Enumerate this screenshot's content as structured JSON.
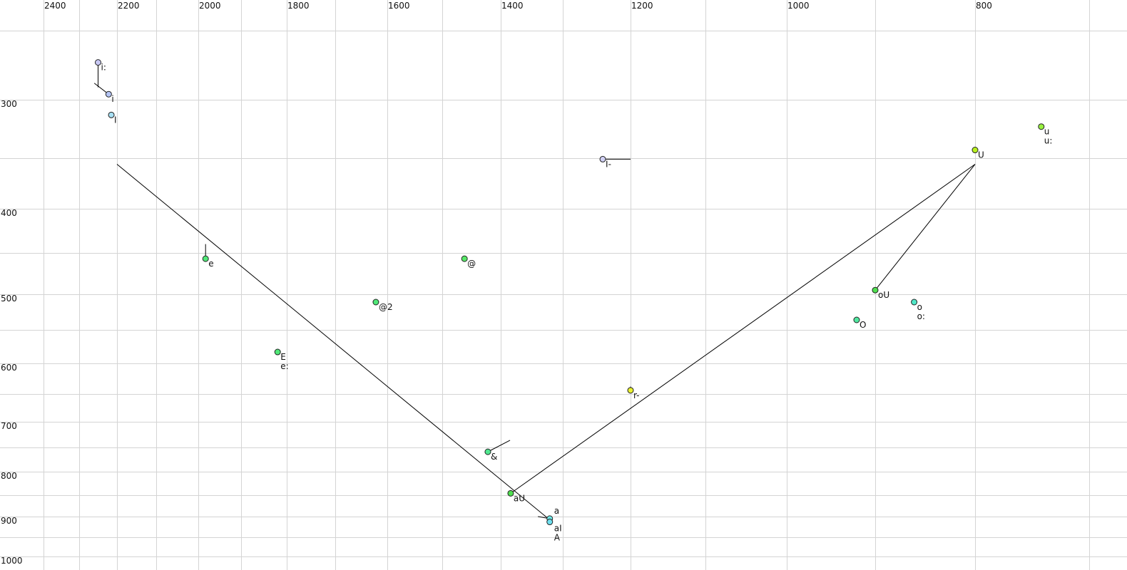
{
  "chart_data": {
    "type": "scatter",
    "title": "",
    "xlabel": "",
    "ylabel": "",
    "x_axis": {
      "reversed": true,
      "scale": "log",
      "range": [
        2470,
        660
      ],
      "tick_labels": [
        "2400",
        "2200",
        "2000",
        "1800",
        "1600",
        "1400",
        "1200",
        "1000",
        "800"
      ],
      "grid_values": [
        2400,
        2300,
        2200,
        2100,
        2000,
        1900,
        1800,
        1700,
        1600,
        1500,
        1400,
        1300,
        1200,
        1100,
        1000,
        900,
        800,
        700
      ]
    },
    "y_axis": {
      "reversed": true,
      "scale": "log",
      "range": [
        225,
        1010
      ],
      "tick_labels": [
        "300",
        "400",
        "500",
        "600",
        "700",
        "800",
        "900",
        "1000"
      ],
      "grid_values": [
        250,
        300,
        350,
        400,
        450,
        500,
        550,
        600,
        650,
        700,
        750,
        800,
        850,
        900,
        950,
        1000
      ]
    },
    "grid": true,
    "points": [
      {
        "label": "i:",
        "f2": 2250,
        "f1": 273,
        "color": "#c8c8f4"
      },
      {
        "label": "i",
        "f2": 2222,
        "f1": 296,
        "color": "#b4c4f4"
      },
      {
        "label": "I",
        "f2": 2215,
        "f1": 313,
        "color": "#a8e0f4"
      },
      {
        "label": "e",
        "f2": 1983,
        "f1": 457,
        "color": "#50e878"
      },
      {
        "label": "E\ne:",
        "f2": 1820,
        "f1": 583,
        "color": "#50e878"
      },
      {
        "label": "@2",
        "f2": 1622,
        "f1": 511,
        "color": "#50e878"
      },
      {
        "label": "@",
        "f2": 1462,
        "f1": 457,
        "color": "#58e868"
      },
      {
        "label": "&",
        "f2": 1422,
        "f1": 759,
        "color": "#50e890"
      },
      {
        "label": "aU",
        "f2": 1384,
        "f1": 846,
        "color": "#50e050"
      },
      {
        "label": "a",
        "f2": 1321,
        "f1": 905,
        "color": "#70e8e8"
      },
      {
        "label": "aI\nA",
        "f2": 1321,
        "f1": 913,
        "color": "#70e0f0"
      },
      {
        "label": "I-",
        "f2": 1241,
        "f1": 351,
        "color": "#d0d0f4"
      },
      {
        "label": "r-",
        "f2": 1200,
        "f1": 644,
        "color": "#e8f030"
      },
      {
        "label": "O",
        "f2": 921,
        "f1": 536,
        "color": "#50e8a0"
      },
      {
        "label": "oU",
        "f2": 900,
        "f1": 495,
        "color": "#50e050"
      },
      {
        "label": "o\no:",
        "f2": 861,
        "f1": 511,
        "color": "#50e8c8"
      },
      {
        "label": "U",
        "f2": 800,
        "f1": 343,
        "color": "#b8f020"
      },
      {
        "label": "u\nu:",
        "f2": 742,
        "f1": 323,
        "color": "#98f040"
      }
    ],
    "trajectories": [
      {
        "from": [
          2250,
          273
        ],
        "to": [
          2250,
          291
        ]
      },
      {
        "from": [
          2222,
          296
        ],
        "to": [
          2260,
          288
        ]
      },
      {
        "from": [
          1983,
          457
        ],
        "to": [
          1983,
          440
        ]
      },
      {
        "from": [
          1422,
          759
        ],
        "to": [
          1385,
          736
        ]
      },
      {
        "from": [
          1241,
          351
        ],
        "to": [
          1200,
          351
        ]
      },
      {
        "from": [
          1321,
          905
        ],
        "to": [
          1340,
          900
        ]
      },
      {
        "from": [
          1200,
          644
        ],
        "to": [
          1200,
          638
        ]
      },
      {
        "from": [
          2200,
          356
        ],
        "to": [
          1321,
          908
        ]
      },
      {
        "from": [
          1384,
          846
        ],
        "to": [
          800,
          356
        ]
      },
      {
        "from": [
          800,
          356
        ],
        "to": [
          900,
          495
        ]
      }
    ]
  }
}
